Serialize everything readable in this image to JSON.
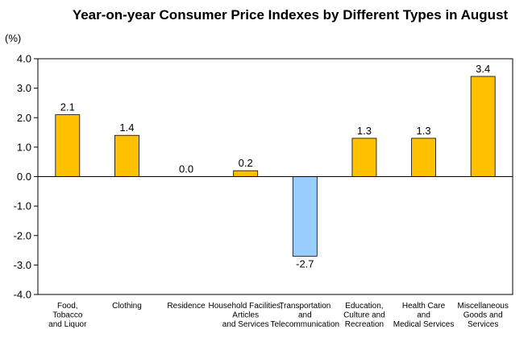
{
  "chart_data": {
    "type": "bar",
    "title": "Year-on-year Consumer Price Indexes by Different Types in August",
    "ylabel": "(%)",
    "xlabel": "",
    "ylim": [
      -4.0,
      4.0
    ],
    "yticks": [
      "4.0",
      "3.0",
      "2.0",
      "1.0",
      "0.0",
      "-1.0",
      "-2.0",
      "-3.0",
      "-4.0"
    ],
    "categories": [
      [
        "Food,",
        "Tobacco",
        "and Liquor"
      ],
      [
        "Clothing"
      ],
      [
        "Residence"
      ],
      [
        "Household Facilities,",
        "Articles",
        "and Services"
      ],
      [
        "Transportation",
        "and",
        "Telecommunication"
      ],
      [
        "Education,",
        "Culture and",
        "Recreation"
      ],
      [
        "Health Care",
        "and",
        "Medical Services"
      ],
      [
        "Miscellaneous",
        "Goods and",
        "Services"
      ]
    ],
    "values": [
      2.1,
      1.4,
      0.0,
      0.2,
      -2.7,
      1.3,
      1.3,
      3.4
    ],
    "data_labels": [
      "2.1",
      "1.4",
      "0.0",
      "0.2",
      "-2.7",
      "1.3",
      "1.3",
      "3.4"
    ],
    "grid": false,
    "legend": "none",
    "colors": {
      "positive": "#FFC000",
      "negative": "#99CCFF",
      "border": "#000000"
    }
  }
}
